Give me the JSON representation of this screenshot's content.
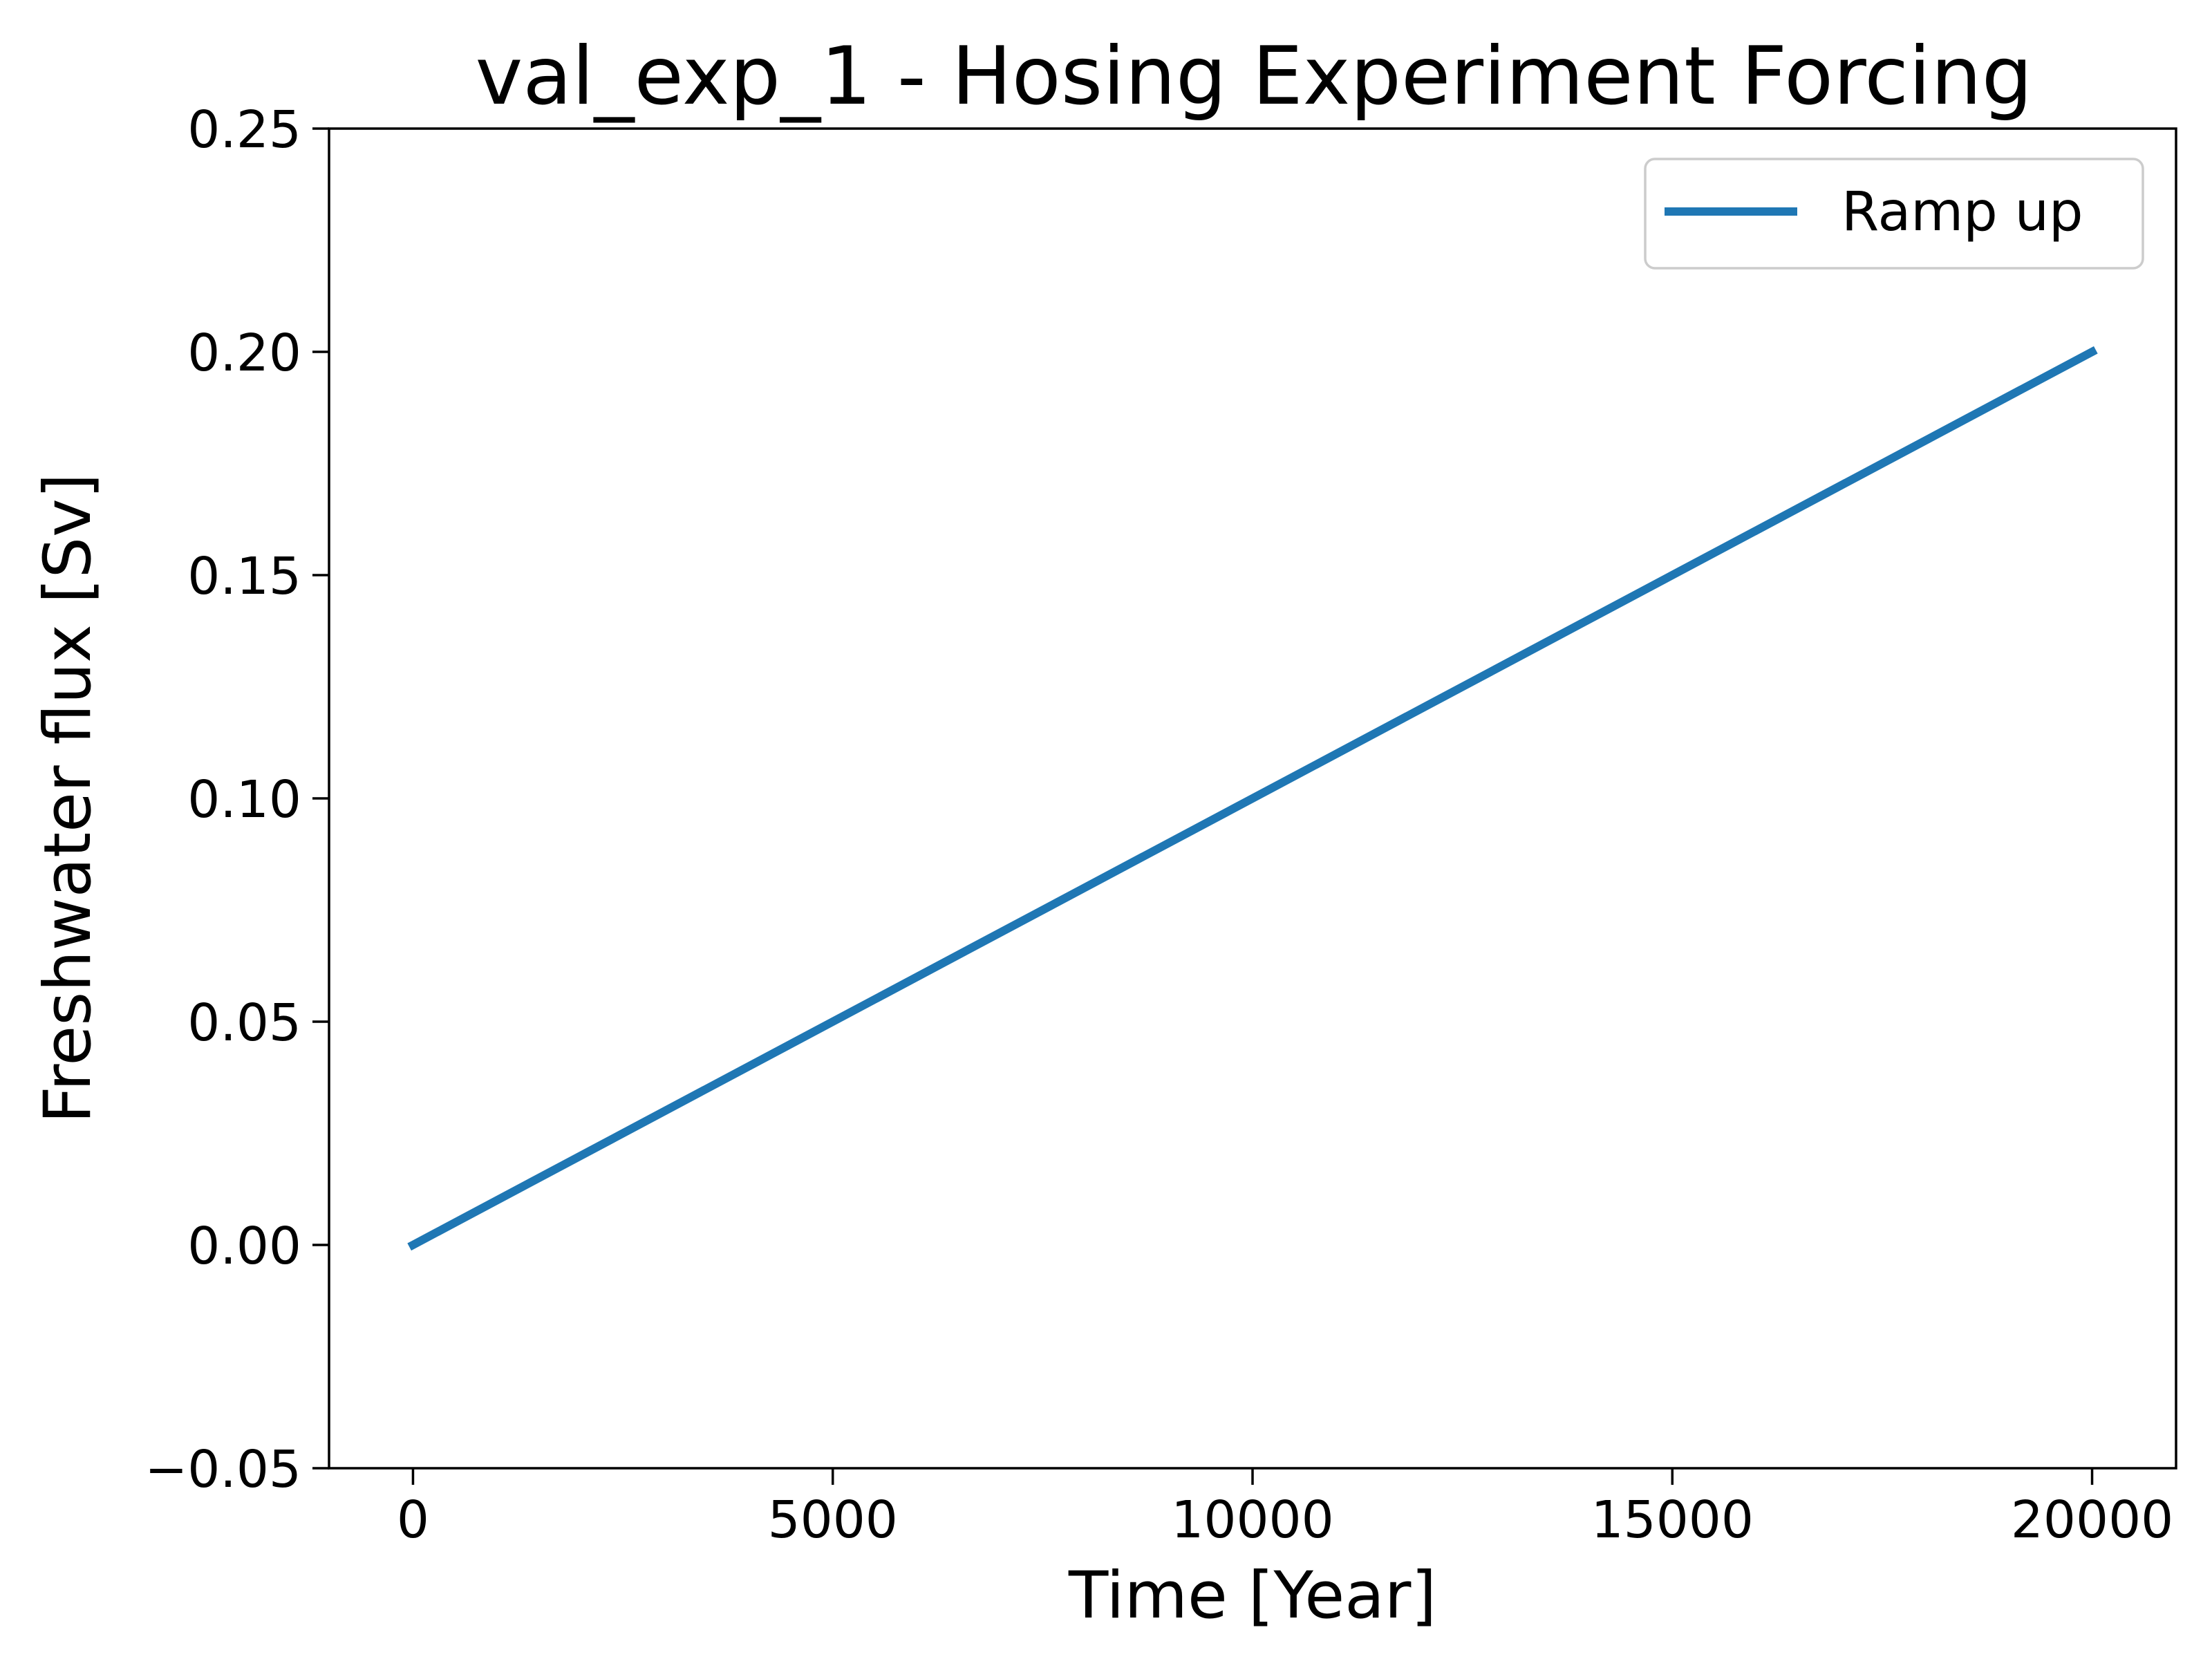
{
  "chart_data": {
    "type": "line",
    "title": "val_exp_1 - Hosing Experiment Forcing",
    "xlabel": "Time [Year]",
    "ylabel": "Freshwater flux [Sv]",
    "xlim": [
      -1000,
      21000
    ],
    "ylim": [
      -0.05,
      0.25
    ],
    "xticks": [
      0,
      5000,
      10000,
      15000,
      20000
    ],
    "xtick_labels": [
      "0",
      "5000",
      "10000",
      "15000",
      "20000"
    ],
    "yticks": [
      -0.05,
      0.0,
      0.05,
      0.1,
      0.15,
      0.2,
      0.25
    ],
    "ytick_labels": [
      "−0.05",
      "0.00",
      "0.05",
      "0.10",
      "0.15",
      "0.20",
      "0.25"
    ],
    "grid": false,
    "legend": {
      "placement": "top-right"
    },
    "series": [
      {
        "name": "Ramp up",
        "color": "#1f77b4",
        "x": [
          0,
          20000
        ],
        "y": [
          0.0,
          0.2
        ]
      }
    ]
  }
}
